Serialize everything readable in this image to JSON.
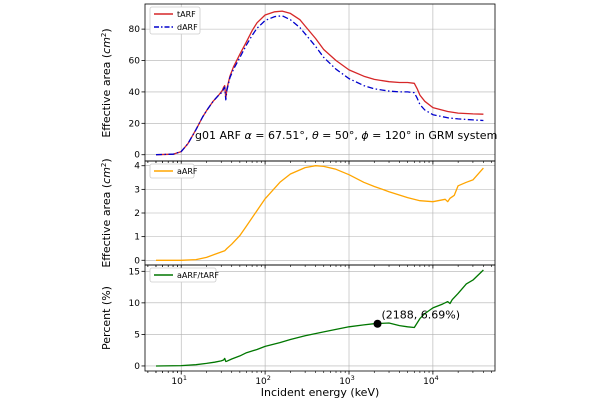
{
  "figure": {
    "title": "",
    "xlabel": "Incident energy (keV)",
    "x_scale": "log",
    "xlim": [
      3.7,
      55000
    ],
    "x_ticks": [
      {
        "value": 10,
        "base": "10",
        "exp": "1"
      },
      {
        "value": 100,
        "base": "10",
        "exp": "2"
      },
      {
        "value": 1000,
        "base": "10",
        "exp": "3"
      },
      {
        "value": 10000,
        "base": "10",
        "exp": "4"
      }
    ]
  },
  "colors": {
    "tARF": "#d62728",
    "dARF": "#0000cc",
    "aARF": "#ffa500",
    "ratio": "#007700",
    "marker": "#000000"
  },
  "chart_data": [
    {
      "type": "line",
      "id": "top",
      "ylabel_main": "Effective area (",
      "ylabel_unit_base": "cm",
      "ylabel_unit_exp": "2",
      "ylabel_tail": ")",
      "ylim": [
        -4,
        96
      ],
      "yticks": [
        0,
        20,
        40,
        60,
        80
      ],
      "ytick_labels": [
        "0",
        "20",
        "40",
        "60",
        "80"
      ],
      "legend_position": "top-left",
      "annotation": {
        "prefix": "g01 ARF ",
        "alpha_sym": "α",
        "alpha_val": " = 67.51°, ",
        "theta_sym": "θ",
        "theta_val": " = 50°, ",
        "phi_sym": "ϕ",
        "phi_val": " = 120° in GRM system"
      },
      "series": [
        {
          "name": "tARF",
          "style": "solid",
          "x": [
            5,
            8,
            10,
            12,
            15,
            18,
            20,
            24,
            28,
            31,
            32,
            33,
            34,
            35,
            38,
            42,
            50,
            60,
            70,
            80,
            100,
            130,
            160,
            200,
            260,
            300,
            400,
            500,
            700,
            1000,
            1500,
            2000,
            3000,
            4000,
            5000,
            6000,
            6500,
            7000,
            8000,
            10000,
            15000,
            20000,
            30000,
            40000
          ],
          "values": [
            0,
            0.3,
            2,
            7,
            16,
            24,
            28,
            34,
            38,
            41,
            43,
            44,
            36,
            42,
            50,
            56,
            64,
            72,
            79,
            84,
            89,
            91,
            91.5,
            90,
            86,
            82,
            74,
            67,
            60,
            54,
            50,
            48,
            46.5,
            46,
            46,
            45.5,
            42,
            38,
            34,
            30,
            27.5,
            26.5,
            26,
            25.8
          ]
        },
        {
          "name": "dARF",
          "style": "dashdot",
          "x": [
            5,
            8,
            10,
            12,
            15,
            18,
            20,
            24,
            28,
            31,
            32,
            33,
            34,
            35,
            38,
            42,
            50,
            60,
            70,
            80,
            100,
            130,
            160,
            200,
            260,
            300,
            400,
            500,
            700,
            1000,
            1500,
            2000,
            3000,
            4000,
            5000,
            6000,
            6500,
            7000,
            8000,
            10000,
            15000,
            20000,
            30000,
            40000
          ],
          "values": [
            0,
            0.3,
            2,
            7,
            16,
            24,
            28,
            34,
            38,
            40,
            42,
            43,
            35,
            41,
            49,
            54.5,
            62,
            70,
            76,
            80.5,
            85.5,
            88,
            88.5,
            86,
            81,
            77,
            69,
            62,
            54.5,
            48.5,
            44,
            42,
            40.5,
            40,
            40,
            39.5,
            36,
            32,
            28.5,
            25.5,
            23.5,
            22.8,
            22.2,
            21.8
          ]
        }
      ]
    },
    {
      "type": "line",
      "id": "middle",
      "ylabel_main": "Effective area (",
      "ylabel_unit_base": "cm",
      "ylabel_unit_exp": "2",
      "ylabel_tail": ")",
      "ylim": [
        -0.2,
        4.2
      ],
      "yticks": [
        0,
        1,
        2,
        3,
        4
      ],
      "ytick_labels": [
        "0",
        "1",
        "2",
        "3",
        "4"
      ],
      "legend_position": "top-left",
      "series": [
        {
          "name": "aARF",
          "style": "solid",
          "x": [
            5,
            10,
            15,
            20,
            25,
            30,
            33,
            35,
            40,
            50,
            60,
            80,
            100,
            150,
            200,
            300,
            400,
            500,
            700,
            1000,
            1500,
            2000,
            3000,
            5000,
            7000,
            10000,
            14000,
            15000,
            16000,
            18000,
            20000,
            25000,
            30000,
            40000
          ],
          "values": [
            0,
            0,
            0.03,
            0.12,
            0.25,
            0.35,
            0.4,
            0.5,
            0.68,
            1.05,
            1.45,
            2.1,
            2.6,
            3.3,
            3.65,
            3.92,
            4,
            3.97,
            3.85,
            3.62,
            3.3,
            3.12,
            2.9,
            2.65,
            2.52,
            2.48,
            2.58,
            2.48,
            2.62,
            2.75,
            3.15,
            3.3,
            3.4,
            3.9
          ]
        }
      ]
    },
    {
      "type": "line",
      "id": "bottom",
      "ylabel_main": "Percent (%)",
      "ylim": [
        -0.8,
        16
      ],
      "yticks": [
        0,
        5,
        10,
        15
      ],
      "ytick_labels": [
        "0",
        "5",
        "10",
        "15"
      ],
      "legend_position": "top-left",
      "series": [
        {
          "name": "aARF/tARF",
          "style": "solid",
          "x": [
            5,
            10,
            15,
            20,
            25,
            30,
            32,
            33,
            34,
            35,
            40,
            50,
            60,
            80,
            100,
            150,
            200,
            300,
            500,
            700,
            1000,
            1500,
            2000,
            3000,
            4000,
            5000,
            6000,
            7000,
            8000,
            10000,
            13000,
            15000,
            16000,
            17000,
            20000,
            25000,
            30000,
            40000
          ],
          "values": [
            0,
            0.05,
            0.2,
            0.4,
            0.6,
            0.8,
            0.95,
            1.2,
            0.7,
            0.75,
            1.1,
            1.6,
            2.1,
            2.6,
            3.1,
            3.7,
            4.2,
            4.8,
            5.4,
            5.8,
            6.2,
            6.5,
            6.69,
            6.8,
            6.4,
            6.2,
            6.1,
            7.5,
            8.3,
            9.2,
            9.8,
            10.2,
            9.9,
            10.5,
            11.5,
            13,
            13.6,
            15.2
          ]
        }
      ],
      "highlight": {
        "x": 2188,
        "y": 6.69,
        "label": "(2188, 6.69%)"
      }
    }
  ]
}
